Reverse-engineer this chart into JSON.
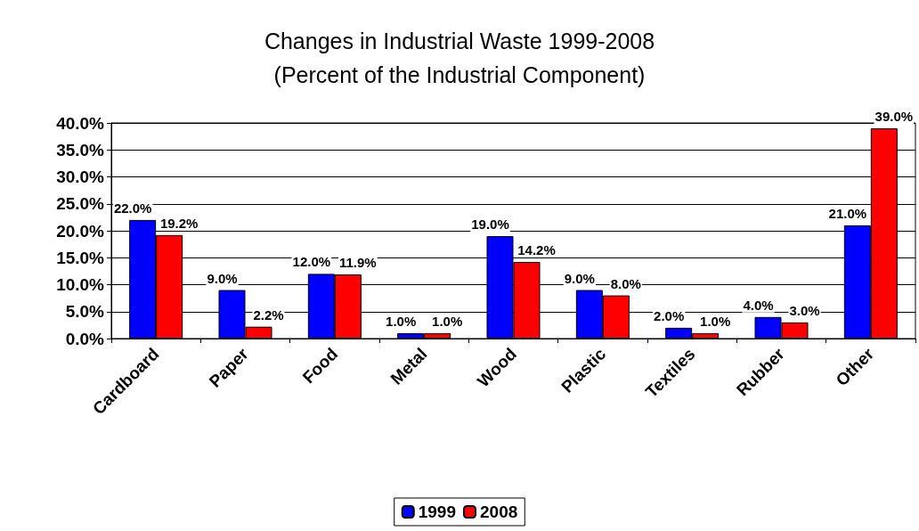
{
  "chart_data": {
    "type": "bar",
    "title": "Changes in Industrial Waste 1999-2008",
    "subtitle": "(Percent of the Industrial Component)",
    "categories": [
      "Cardboard",
      "Paper",
      "Food",
      "Metal",
      "Wood",
      "Plastic",
      "Textiles",
      "Rubber",
      "Other"
    ],
    "series": [
      {
        "name": "1999",
        "color": "#0000ff",
        "values": [
          22.0,
          9.0,
          12.0,
          1.0,
          19.0,
          9.0,
          2.0,
          4.0,
          21.0
        ],
        "value_labels": [
          "22.0%",
          "9.0%",
          "12.0%",
          "1.0%",
          "19.0%",
          "9.0%",
          "2.0%",
          "4.0%",
          "21.0%"
        ]
      },
      {
        "name": "2008",
        "color": "#ff0000",
        "values": [
          19.2,
          2.2,
          11.9,
          1.0,
          14.2,
          8.0,
          1.0,
          3.0,
          39.0
        ],
        "value_labels": [
          "19.2%",
          "2.2%",
          "11.9%",
          "1.0%",
          "14.2%",
          "8.0%",
          "1.0%",
          "3.0%",
          "39.0%"
        ]
      }
    ],
    "ylim": [
      0,
      40
    ],
    "yticks": [
      {
        "value": 0,
        "label": "0.0%"
      },
      {
        "value": 5,
        "label": "5.0%"
      },
      {
        "value": 10,
        "label": "10.0%"
      },
      {
        "value": 15,
        "label": "15.0%"
      },
      {
        "value": 20,
        "label": "20.0%"
      },
      {
        "value": 25,
        "label": "25.0%"
      },
      {
        "value": 30,
        "label": "30.0%"
      },
      {
        "value": 35,
        "label": "35.0%"
      },
      {
        "value": 40,
        "label": "40.0%"
      }
    ],
    "grid": "y",
    "legend": "bottom"
  }
}
